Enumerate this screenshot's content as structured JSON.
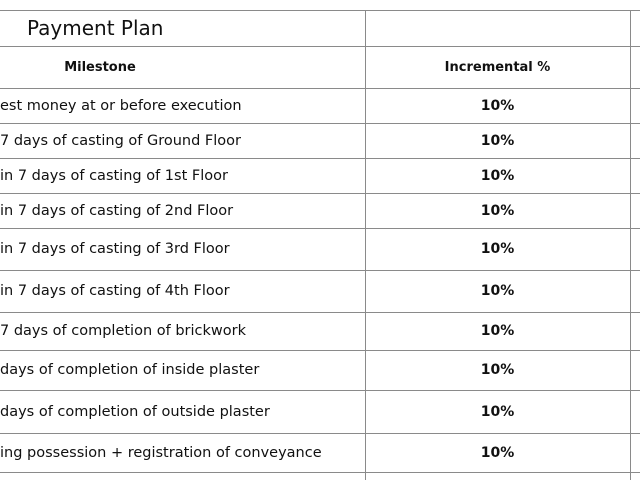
{
  "header": {
    "title": "Payment Plan"
  },
  "table": {
    "columns": [
      "Milestone",
      "Incremental %"
    ],
    "rows": [
      [
        "est money at or before execution",
        "10%"
      ],
      [
        "7 days of casting of Ground Floor",
        "10%"
      ],
      [
        "in 7 days of casting of 1st Floor",
        "10%"
      ],
      [
        "in 7 days of casting of 2nd Floor",
        "10%"
      ],
      [
        "in 7 days of casting of 3rd Floor",
        "10%"
      ],
      [
        "in 7 days of casting of 4th Floor",
        "10%"
      ],
      [
        "7 days of completion of brickwork",
        "10%"
      ],
      [
        "days of completion of inside plaster",
        "10%"
      ],
      [
        "days of completion of outside plaster",
        "10%"
      ],
      [
        "ing possession + registration of conveyance",
        "10%"
      ]
    ]
  }
}
